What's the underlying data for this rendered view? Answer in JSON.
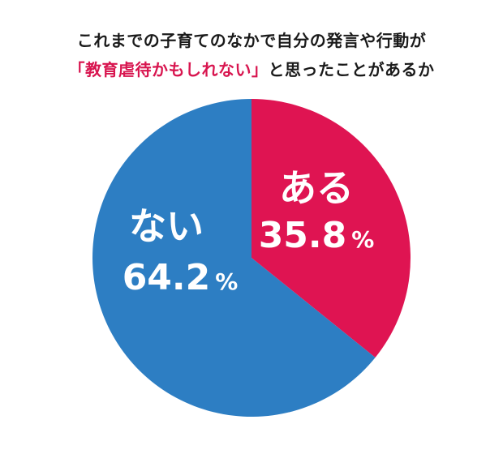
{
  "title": {
    "line1": "これまでの子育てのなかで自分の発言や行動が",
    "line2_emphasis": "「教育虐待かもしれない」",
    "line2_rest": "と思ったことがあるか"
  },
  "chart_data": {
    "type": "pie",
    "start_angle_deg": 0,
    "direction": "clockwise",
    "categories": [
      "ある",
      "ない"
    ],
    "values": [
      35.8,
      64.2
    ],
    "value_unit": "%",
    "value_labels": [
      "35.8",
      "64.2"
    ],
    "colors": [
      "#df1452",
      "#2d7ec3"
    ],
    "legend": "none"
  }
}
